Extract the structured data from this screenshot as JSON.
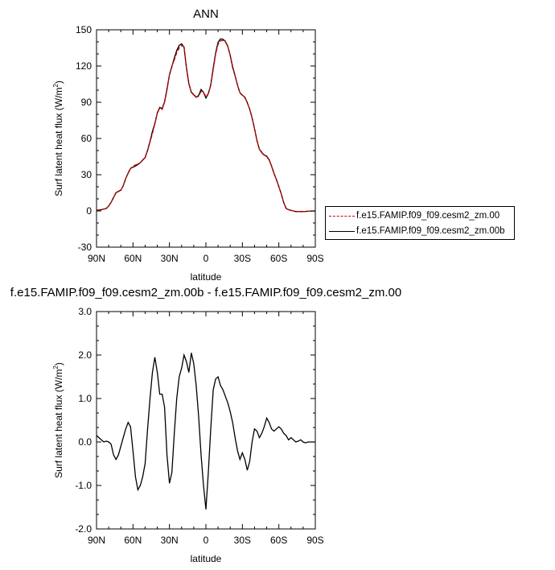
{
  "chart_data": [
    {
      "type": "line",
      "title": "ANN",
      "xlabel": "latitude",
      "ylabel": "Surf latent heat flux (W/m",
      "ylabel_sup": "2",
      "ylabel_close": ")",
      "xlim": [
        -90,
        90
      ],
      "ylim": [
        -30,
        150
      ],
      "yticks": [
        -30,
        0,
        30,
        60,
        90,
        120,
        150
      ],
      "yticklabels": [
        "-30",
        "0",
        "30",
        "60",
        "90",
        "120",
        "150"
      ],
      "xticks": [
        -90,
        -60,
        -30,
        0,
        30,
        60,
        90
      ],
      "xticklabels": [
        "90N",
        "60N",
        "30N",
        "0",
        "30S",
        "60S",
        "90S"
      ],
      "legend": [
        "f.e15.FAMIP.f09_f09.cesm2_zm.00",
        "f.e15.FAMIP.f09_f09.cesm2_zm.00b"
      ],
      "colors": {
        "ref": "#cc0000",
        "test": "#000000"
      },
      "x": [
        -90,
        -86,
        -82,
        -80,
        -78,
        -76,
        -74,
        -72,
        -70,
        -68,
        -66,
        -64,
        -62,
        -60,
        -58,
        -56,
        -54,
        -52,
        -50,
        -48,
        -46,
        -44,
        -42,
        -40,
        -38,
        -36,
        -34,
        -32,
        -30,
        -28,
        -26,
        -24,
        -22,
        -20,
        -18,
        -16,
        -14,
        -12,
        -10,
        -8,
        -6,
        -4,
        -2,
        0,
        2,
        4,
        6,
        8,
        10,
        12,
        14,
        16,
        18,
        20,
        22,
        24,
        26,
        28,
        30,
        32,
        34,
        36,
        38,
        40,
        42,
        44,
        46,
        48,
        50,
        52,
        54,
        56,
        58,
        60,
        62,
        64,
        66,
        68,
        70,
        72,
        74,
        76,
        78,
        80,
        82,
        84,
        86,
        88,
        90
      ],
      "series": [
        {
          "name": "f.e15.FAMIP.f09_f09.cesm2_zm.00",
          "values": [
            0.5,
            1,
            2,
            4,
            7,
            11,
            15,
            16,
            17,
            21,
            27,
            31,
            35,
            37,
            38,
            39,
            40,
            42,
            44,
            50,
            57,
            64,
            72,
            81,
            85,
            84,
            90,
            100,
            113,
            120,
            125,
            131,
            135,
            137,
            136,
            118,
            105,
            98,
            96,
            94,
            95,
            99,
            98,
            95,
            97,
            104,
            117,
            130,
            138,
            141,
            141,
            140,
            136,
            129,
            120,
            112,
            104,
            98,
            96,
            94,
            90,
            84,
            77,
            68,
            58,
            51,
            48,
            46,
            45,
            42,
            37,
            31,
            26,
            20,
            14,
            7,
            2,
            1,
            0.5,
            0,
            -0.5,
            -0.5,
            -0.5,
            -0.5,
            -0.4,
            -0.3,
            -0.2,
            -0.1,
            0
          ]
        },
        {
          "name": "f.e15.FAMIP.f09_f09.cesm2_zm.00b",
          "values": [
            0.6,
            1.1,
            2.1,
            4.1,
            7.1,
            11.2,
            15.2,
            16.3,
            17.2,
            20.8,
            26.8,
            31.4,
            35.3,
            36.2,
            37.2,
            38.5,
            39.9,
            42.2,
            44.3,
            50.3,
            57.6,
            65.9,
            72.4,
            81.3,
            85.7,
            84.8,
            90.4,
            100.8,
            112.8,
            119.6,
            126.6,
            132.8,
            137.1,
            138.4,
            135.6,
            118.6,
            105.5,
            98.3,
            96.3,
            94.1,
            95.6,
            100.6,
            98.2,
            93.5,
            97.2,
            104.3,
            118.5,
            130.9,
            139.7,
            142.5,
            142.1,
            140.5,
            136.3,
            128.9,
            118.9,
            111.9,
            104.2,
            97.8,
            95.9,
            94.2,
            89.6,
            84.4,
            77.1,
            68.3,
            58.3,
            51.2,
            48.4,
            46.3,
            45.4,
            42.4,
            37.2,
            31.3,
            26.1,
            20.1,
            14.0,
            7.0,
            2.1,
            1.0,
            0.5,
            0,
            -0.5,
            -0.5,
            -0.5,
            -0.5,
            -0.4,
            -0.3,
            -0.2,
            -0.1,
            0
          ]
        }
      ]
    },
    {
      "type": "line",
      "title": "f.e15.FAMIP.f09_f09.cesm2_zm.00b - f.e15.FAMIP.f09_f09.cesm2_zm.00",
      "xlabel": "latitude",
      "ylabel": "Surf latent heat flux (W/m",
      "ylabel_sup": "2",
      "ylabel_close": ")",
      "xlim": [
        -90,
        90
      ],
      "ylim": [
        -2.0,
        3.0
      ],
      "yticks": [
        -2.0,
        -1.0,
        0.0,
        1.0,
        2.0,
        3.0
      ],
      "yticklabels": [
        "-2.0",
        "-1.0",
        "0.0",
        "1.0",
        "2.0",
        "3.0"
      ],
      "xticks": [
        -90,
        -60,
        -30,
        0,
        30,
        60,
        90
      ],
      "xticklabels": [
        "90N",
        "60N",
        "30N",
        "0",
        "30S",
        "60S",
        "90S"
      ],
      "colors": {
        "line": "#000000"
      },
      "x": [
        -90,
        -88,
        -86,
        -84,
        -82,
        -80,
        -78,
        -76,
        -74,
        -72,
        -70,
        -68,
        -66,
        -64,
        -62,
        -60,
        -58,
        -56,
        -54,
        -52,
        -50,
        -48,
        -46,
        -44,
        -42,
        -40,
        -38,
        -36,
        -34,
        -32,
        -30,
        -28,
        -26,
        -24,
        -22,
        -20,
        -18,
        -16,
        -14,
        -12,
        -10,
        -8,
        -6,
        -4,
        -2,
        0,
        2,
        4,
        6,
        8,
        10,
        12,
        14,
        16,
        18,
        20,
        22,
        24,
        26,
        28,
        30,
        32,
        34,
        36,
        38,
        40,
        42,
        44,
        46,
        48,
        50,
        52,
        54,
        56,
        58,
        60,
        62,
        64,
        66,
        68,
        70,
        72,
        74,
        76,
        78,
        80,
        82,
        84,
        86,
        88,
        90
      ],
      "values": [
        0.15,
        0.1,
        0.05,
        0.0,
        0.02,
        0.0,
        -0.05,
        -0.3,
        -0.4,
        -0.3,
        -0.1,
        0.1,
        0.3,
        0.45,
        0.35,
        -0.2,
        -0.8,
        -1.1,
        -1.0,
        -0.8,
        -0.5,
        0.3,
        1.0,
        1.6,
        1.95,
        1.6,
        1.1,
        1.1,
        0.8,
        -0.3,
        -0.95,
        -0.7,
        0.2,
        1.0,
        1.5,
        1.7,
        2.0,
        1.85,
        1.6,
        2.05,
        1.8,
        1.3,
        0.6,
        -0.3,
        -1.0,
        -1.55,
        -0.7,
        0.3,
        1.2,
        1.45,
        1.5,
        1.3,
        1.2,
        1.05,
        0.9,
        0.7,
        0.45,
        0.1,
        -0.2,
        -0.4,
        -0.25,
        -0.4,
        -0.65,
        -0.45,
        0.0,
        0.3,
        0.25,
        0.1,
        0.2,
        0.35,
        0.55,
        0.45,
        0.3,
        0.25,
        0.3,
        0.35,
        0.3,
        0.2,
        0.15,
        0.05,
        0.1,
        0.05,
        0.0,
        0.02,
        0.05,
        0.0,
        -0.02,
        0.0,
        0.0,
        0.0,
        0.0
      ]
    }
  ]
}
